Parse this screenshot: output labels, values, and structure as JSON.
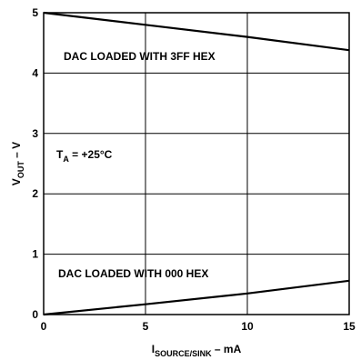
{
  "chart_data": {
    "type": "line",
    "title": "",
    "xlabel": {
      "main": "I",
      "sub": "SOURCE/SINK",
      "unit": " – mA"
    },
    "ylabel": {
      "main": "V",
      "sub": "OUT",
      "unit": " – V"
    },
    "xlim": [
      0,
      15
    ],
    "ylim": [
      0,
      5
    ],
    "xticks": [
      "0",
      "5",
      "10",
      "15"
    ],
    "yticks": [
      "0",
      "1",
      "2",
      "3",
      "4",
      "5"
    ],
    "grid": true,
    "series": [
      {
        "name": "DAC LOADED WITH 3FF HEX",
        "x": [
          0,
          5,
          10,
          15
        ],
        "y": [
          5.0,
          4.8,
          4.6,
          4.38
        ]
      },
      {
        "name": "DAC LOADED WITH 000 HEX",
        "x": [
          0,
          5,
          10,
          15
        ],
        "y": [
          0.0,
          0.17,
          0.35,
          0.56
        ]
      }
    ],
    "annotations": [
      {
        "label": {
          "main": "T",
          "sub": "A",
          "rest": " = +25°C"
        }
      }
    ]
  }
}
